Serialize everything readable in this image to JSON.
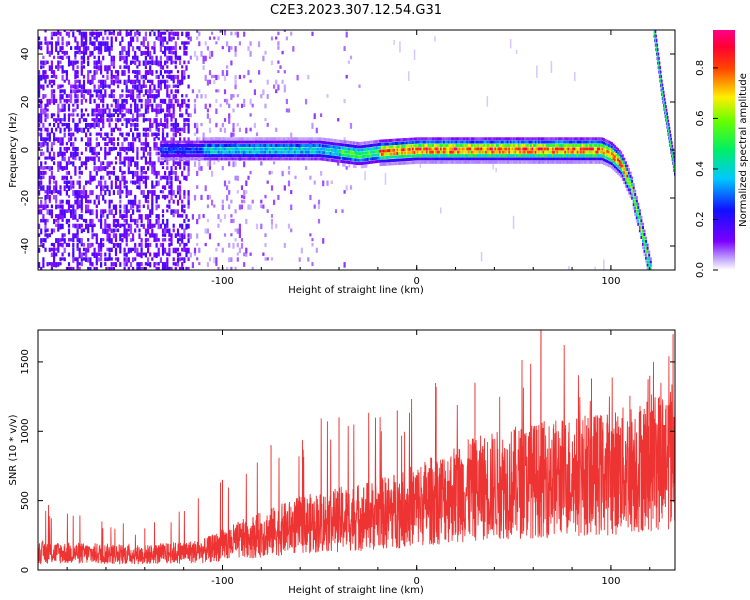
{
  "figure": {
    "title": "C2E3.2023.307.12.54.G31"
  },
  "colorbar": {
    "label": "Normalized spectral amplitude",
    "ticks": [
      "0.0",
      "0.2",
      "0.4",
      "0.6",
      "0.8"
    ],
    "range": [
      0,
      0.95
    ]
  },
  "chart_data": [
    {
      "type": "heatmap",
      "title": "",
      "xlabel": "Height of straight line (km)",
      "ylabel": "Frequency (Hz)",
      "xlim": [
        -195,
        133
      ],
      "ylim": [
        -50,
        50
      ],
      "xticks": [
        -100,
        0,
        100
      ],
      "xtick_labels": [
        "-100",
        "0",
        "100"
      ],
      "yticks": [
        -40,
        -20,
        0,
        20,
        40
      ],
      "ytick_labels": [
        "-40",
        "-20",
        "0",
        "20",
        "40"
      ],
      "colormap": "rainbow (purple-blue-cyan-green-yellow-red-magenta)",
      "noise_region_x": [
        -195,
        -30
      ],
      "signal_trace": {
        "x": [
          -132,
          -100,
          -50,
          -30,
          -20,
          0,
          50,
          95,
          100,
          105,
          110,
          115,
          120
        ],
        "y": [
          0,
          0,
          0,
          -2,
          -1,
          0,
          0,
          0,
          -2,
          -6,
          -15,
          -32,
          -50
        ]
      },
      "aliased_trace": {
        "x": [
          122,
          126,
          130,
          133
        ],
        "y": [
          50,
          25,
          5,
          -10
        ]
      }
    },
    {
      "type": "line",
      "title": "",
      "xlabel": "Height of straight line (km)",
      "ylabel": "SNR (10 * v/v)",
      "xlim": [
        -195,
        133
      ],
      "ylim": [
        0,
        1730
      ],
      "xticks": [
        -100,
        0,
        100
      ],
      "xtick_labels": [
        "-100",
        "0",
        "100"
      ],
      "yticks": [
        0,
        500,
        1000,
        1500
      ],
      "ytick_labels": [
        "0",
        "500",
        "1000",
        "1500"
      ],
      "series": [
        {
          "color": "#ee3333",
          "trend": {
            "x": [
              -195,
              -170,
              -140,
              -110,
              -90,
              -75,
              -60,
              -40,
              -20,
              0,
              20,
              40,
              60,
              80,
              100,
              120,
              133
            ],
            "y": [
              150,
              140,
              130,
              160,
              260,
              320,
              380,
              430,
              470,
              550,
              650,
              720,
              760,
              800,
              820,
              900,
              1000
            ]
          },
          "peaks": {
            "x": [
              -195,
              -140,
              -100,
              -75,
              -40,
              -10,
              10,
              30,
              64,
              90,
              120,
              132
            ],
            "y": [
              470,
              300,
              650,
              900,
              1100,
              1150,
              1320,
              1350,
              1730,
              1380,
              1400,
              1700
            ]
          }
        }
      ]
    }
  ]
}
